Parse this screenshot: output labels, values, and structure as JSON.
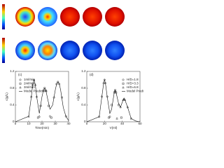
{
  "chart_data": [
    {
      "type": "line",
      "label": "(c)",
      "xlabel": "Time(min)",
      "ylabel": "c(g/L)",
      "xlim": [
        0,
        40
      ],
      "xticks": [
        0,
        10,
        20,
        30,
        40
      ],
      "ylim": [
        0,
        1.2
      ],
      "yticks": [
        0,
        0.4,
        0.8,
        1.2
      ],
      "legend": "upper left",
      "series": [
        {
          "name": "1ml/min",
          "color": "#333333",
          "marker": "circle",
          "x": [
            26,
            29,
            31,
            32,
            33,
            35,
            38
          ],
          "values": [
            0.13,
            0.58,
            0.9,
            0.95,
            0.9,
            0.58,
            0.13
          ]
        },
        {
          "name": "2ml/min",
          "color": "#333333",
          "marker": "square",
          "x": [
            17,
            19,
            21,
            22,
            23,
            25,
            27
          ],
          "values": [
            0.1,
            0.38,
            0.74,
            0.8,
            0.74,
            0.38,
            0.1
          ]
        },
        {
          "name": "3ml/min",
          "color": "#333333",
          "marker": "triangle",
          "x": [
            10,
            12,
            13,
            14,
            15,
            16,
            18
          ],
          "values": [
            0.13,
            0.6,
            0.88,
            1.0,
            0.88,
            0.6,
            0.13
          ]
        },
        {
          "name": "Model Prediction",
          "color": "#111111",
          "x": [
            0,
            10,
            12,
            13,
            14,
            15,
            16,
            18,
            20,
            21,
            22,
            23,
            24,
            26,
            28,
            30,
            31,
            32,
            33,
            34,
            36,
            38,
            40
          ],
          "values": [
            0,
            0.13,
            0.6,
            0.88,
            1.0,
            0.88,
            0.6,
            0.2,
            0.6,
            0.74,
            0.8,
            0.74,
            0.58,
            0.3,
            0.4,
            0.76,
            0.9,
            0.95,
            0.9,
            0.76,
            0.34,
            0.13,
            0.03
          ]
        }
      ]
    },
    {
      "type": "line",
      "label": "(d)",
      "xlabel": "V(ml)",
      "ylabel": "c(g/L)",
      "xlim": [
        0,
        60
      ],
      "xticks": [
        0,
        20,
        40,
        60
      ],
      "ylim": [
        0,
        1.2
      ],
      "yticks": [
        0,
        0.4,
        0.8,
        1.2
      ],
      "legend": "upper right",
      "series": [
        {
          "name": "H/D=1.8",
          "color": "#333333",
          "marker": "circle",
          "x": [
            14,
            17,
            19,
            20,
            21,
            23,
            26
          ],
          "values": [
            0.12,
            0.6,
            0.92,
            1.0,
            0.92,
            0.6,
            0.12
          ]
        },
        {
          "name": "H/D=3.3",
          "color": "#333333",
          "marker": "square",
          "x": [
            25,
            28,
            31,
            32,
            33,
            36,
            39
          ],
          "values": [
            0.1,
            0.4,
            0.7,
            0.75,
            0.7,
            0.4,
            0.1
          ]
        },
        {
          "name": "H/D=6.8",
          "color": "#333333",
          "marker": "triangle",
          "x": [
            34,
            38,
            41,
            42,
            43,
            46,
            50
          ],
          "values": [
            0.08,
            0.35,
            0.52,
            0.55,
            0.52,
            0.35,
            0.08
          ]
        },
        {
          "name": "Model Prediction",
          "color": "#111111",
          "x": [
            0,
            14,
            17,
            19,
            20,
            21,
            23,
            26,
            28,
            31,
            32,
            33,
            36,
            38,
            41,
            42,
            43,
            46,
            50,
            55,
            60
          ],
          "values": [
            0,
            0.12,
            0.6,
            0.92,
            1.0,
            0.92,
            0.6,
            0.2,
            0.3,
            0.7,
            0.75,
            0.7,
            0.42,
            0.35,
            0.52,
            0.55,
            0.52,
            0.35,
            0.08,
            0.02,
            0
          ]
        }
      ]
    }
  ]
}
